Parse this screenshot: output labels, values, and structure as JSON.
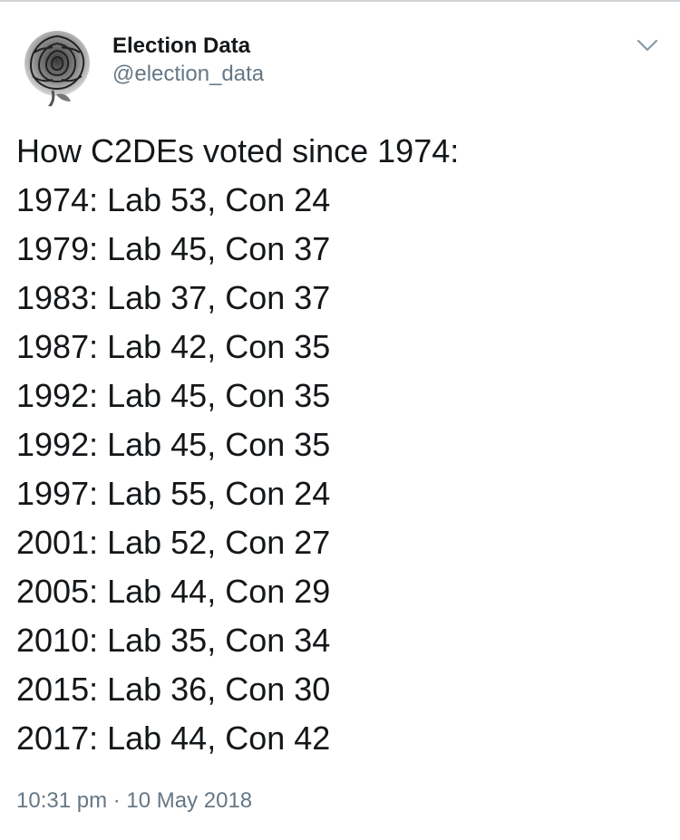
{
  "tweet": {
    "author": {
      "display_name": "Election Data",
      "handle": "@election_data",
      "avatar_icon": "rose-icon"
    },
    "menu_icon": "chevron-down-icon",
    "heading": "How C2DEs voted since 1974:",
    "lines": [
      "1974: Lab 53, Con 24",
      "1979: Lab 45, Con 37",
      "1983: Lab 37, Con 37",
      "1987: Lab 42, Con 35",
      "1992: Lab 45, Con 35",
      "1992: Lab 45, Con 35",
      "1997: Lab 55, Con 24",
      "2001: Lab 52, Con 27",
      "2005: Lab 44, Con 29",
      "2010: Lab 35, Con 34",
      "2015: Lab 36, Con 30",
      "2017: Lab 44, Con 42"
    ],
    "timestamp": "10:31 pm · 10 May 2018"
  },
  "colors": {
    "text": "#14171a",
    "secondary": "#657786",
    "divider": "#cfd3d6"
  }
}
